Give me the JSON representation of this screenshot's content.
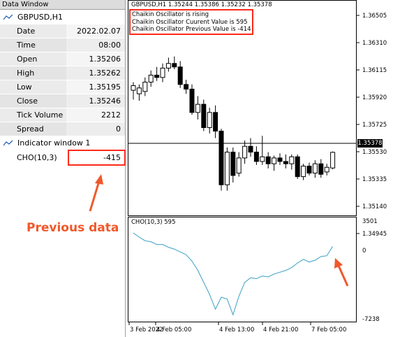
{
  "data_window": {
    "title": "Data Window",
    "symbol_header": "GBPUSD,H1",
    "rows": [
      {
        "label": "Date",
        "value": "2022.02.07"
      },
      {
        "label": "Time",
        "value": "08:00"
      },
      {
        "label": "Open",
        "value": "1.35206"
      },
      {
        "label": "High",
        "value": "1.35262"
      },
      {
        "label": "Low",
        "value": "1.35195"
      },
      {
        "label": "Close",
        "value": "1.35246"
      },
      {
        "label": "Tick Volume",
        "value": "2212"
      },
      {
        "label": "Spread",
        "value": "0"
      }
    ],
    "indicator_header": "Indicator window 1",
    "indicator_row": {
      "label": "CHO(10,3)",
      "value": "-415"
    }
  },
  "annotation": {
    "label": "Previous data",
    "color": "#f0582a",
    "box_color": "#ff2a1a"
  },
  "chart": {
    "ohlc_header": "GBPUSD,H1  1.35244 1.35386 1.35232 1.35378",
    "info_lines": [
      "Chaikin Oscillator is rising",
      "Chaikin Oscillator Cuurent Value is 595",
      "Chaikin Oscillator Previous Value is -414"
    ],
    "price_ticks": [
      "1.36505",
      "1.36310",
      "1.36115",
      "1.35920",
      "1.35725",
      "1.35530",
      "1.35335",
      "1.35140",
      "1.34945"
    ],
    "current_price": "1.35378",
    "indicator_label": "CHO(10,3) 595",
    "indicator_ticks": [
      "3501",
      "0",
      "-7238"
    ],
    "time_ticks": [
      "3 Feb 2022",
      "4 Feb 05:00",
      "4 Feb 13:00",
      "4 Feb 21:00",
      "7 Feb 05:00"
    ],
    "indicator_line_color": "#4aa8c8"
  },
  "chart_data": [
    {
      "type": "candlestick",
      "title": "",
      "ylim": [
        1.3485,
        1.366
      ],
      "candles": [
        {
          "o": 1.3591,
          "h": 1.3598,
          "l": 1.3583,
          "c": 1.3595
        },
        {
          "o": 1.3588,
          "h": 1.3596,
          "l": 1.3582,
          "c": 1.3593
        },
        {
          "o": 1.359,
          "h": 1.3602,
          "l": 1.3586,
          "c": 1.3598
        },
        {
          "o": 1.3598,
          "h": 1.3608,
          "l": 1.3594,
          "c": 1.3604
        },
        {
          "o": 1.3604,
          "h": 1.3611,
          "l": 1.3599,
          "c": 1.3602
        },
        {
          "o": 1.3602,
          "h": 1.3614,
          "l": 1.3598,
          "c": 1.361
        },
        {
          "o": 1.361,
          "h": 1.3619,
          "l": 1.3607,
          "c": 1.3614
        },
        {
          "o": 1.3614,
          "h": 1.362,
          "l": 1.3609,
          "c": 1.3611
        },
        {
          "o": 1.3611,
          "h": 1.3616,
          "l": 1.3593,
          "c": 1.3596
        },
        {
          "o": 1.3596,
          "h": 1.36,
          "l": 1.3588,
          "c": 1.3592
        },
        {
          "o": 1.3592,
          "h": 1.3596,
          "l": 1.357,
          "c": 1.3572
        },
        {
          "o": 1.3572,
          "h": 1.3586,
          "l": 1.3566,
          "c": 1.3579
        },
        {
          "o": 1.3579,
          "h": 1.3583,
          "l": 1.3556,
          "c": 1.3559
        },
        {
          "o": 1.3559,
          "h": 1.3576,
          "l": 1.3554,
          "c": 1.3572
        },
        {
          "o": 1.3572,
          "h": 1.3578,
          "l": 1.355,
          "c": 1.3556
        },
        {
          "o": 1.3556,
          "h": 1.3558,
          "l": 1.3505,
          "c": 1.351
        },
        {
          "o": 1.351,
          "h": 1.3542,
          "l": 1.3505,
          "c": 1.3538
        },
        {
          "o": 1.3538,
          "h": 1.3542,
          "l": 1.3512,
          "c": 1.3518
        },
        {
          "o": 1.352,
          "h": 1.3538,
          "l": 1.3517,
          "c": 1.3533
        },
        {
          "o": 1.3533,
          "h": 1.3548,
          "l": 1.3528,
          "c": 1.3543
        },
        {
          "o": 1.3543,
          "h": 1.355,
          "l": 1.3534,
          "c": 1.3538
        },
        {
          "o": 1.3538,
          "h": 1.3543,
          "l": 1.3527,
          "c": 1.353
        },
        {
          "o": 1.353,
          "h": 1.3552,
          "l": 1.3527,
          "c": 1.3534
        },
        {
          "o": 1.3534,
          "h": 1.3538,
          "l": 1.3524,
          "c": 1.3528
        },
        {
          "o": 1.3528,
          "h": 1.3535,
          "l": 1.3522,
          "c": 1.3533
        },
        {
          "o": 1.3533,
          "h": 1.3537,
          "l": 1.3527,
          "c": 1.353
        },
        {
          "o": 1.353,
          "h": 1.3536,
          "l": 1.3524,
          "c": 1.3528
        },
        {
          "o": 1.3528,
          "h": 1.3536,
          "l": 1.3523,
          "c": 1.3534
        },
        {
          "o": 1.3534,
          "h": 1.3536,
          "l": 1.3515,
          "c": 1.3517
        },
        {
          "o": 1.3517,
          "h": 1.3528,
          "l": 1.3514,
          "c": 1.3526
        },
        {
          "o": 1.3526,
          "h": 1.3529,
          "l": 1.3518,
          "c": 1.352
        },
        {
          "o": 1.352,
          "h": 1.3531,
          "l": 1.3516,
          "c": 1.3528
        },
        {
          "o": 1.3528,
          "h": 1.3532,
          "l": 1.3516,
          "c": 1.3519
        },
        {
          "o": 1.3521,
          "h": 1.3528,
          "l": 1.3518,
          "c": 1.3525
        },
        {
          "o": 1.35244,
          "h": 1.35386,
          "l": 1.35232,
          "c": 1.35378
        }
      ]
    },
    {
      "type": "line",
      "title": "",
      "ylim": [
        -7238,
        3501
      ],
      "series": [
        {
          "values": [
            2050,
            1600,
            1200,
            1100,
            800,
            800,
            500,
            300,
            0,
            -300,
            -1000,
            -2000,
            -3300,
            -4600,
            -6200,
            -4900,
            -5100,
            -6800,
            -4800,
            -3300,
            -2800,
            -2900,
            -2600,
            -2700,
            -2400,
            -2200,
            -2000,
            -1700,
            -1200,
            -800,
            -1100,
            -900,
            -500,
            -414,
            595
          ]
        }
      ]
    }
  ]
}
